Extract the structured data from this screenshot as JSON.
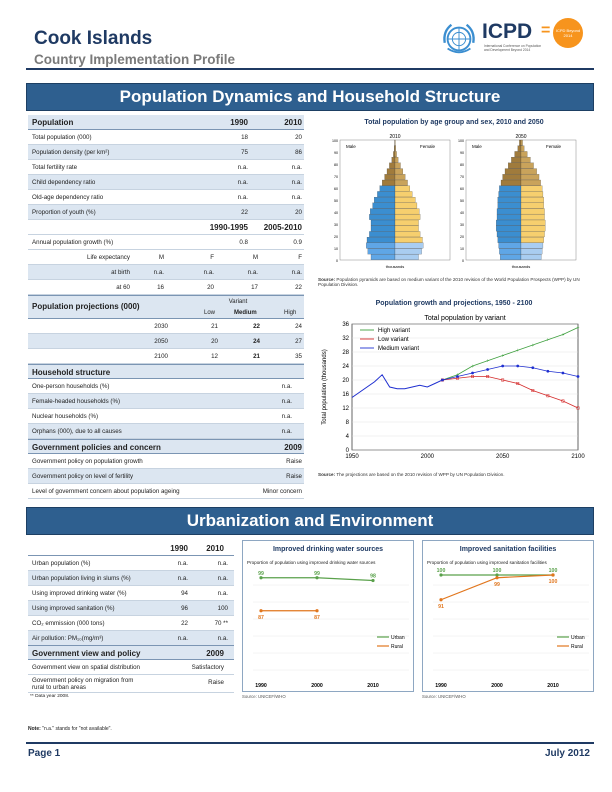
{
  "header": {
    "country": "Cook Islands",
    "subtitle": "Country Implementation Profile",
    "logo_text": "ICPD",
    "logo_eq": "=",
    "logo_caption": "International Conference on Population and Development Beyond 2014",
    "logo_circle_text": "ICPD Beyond 2014",
    "colors": {
      "navy": "#1f3a63",
      "band": "#2e5f8f",
      "orange": "#f7941d",
      "un_blue": "#3b8ed0"
    }
  },
  "section1": {
    "band_title": "Population Dynamics and Household Structure",
    "population_table": {
      "header": {
        "label": "Population",
        "c1": "1990",
        "c2": "2010"
      },
      "rows": [
        {
          "label": "Total population (000)",
          "v1": "18",
          "v2": "20"
        },
        {
          "label": "Population density (per km²)",
          "v1": "75",
          "v2": "86"
        },
        {
          "label": "Total fertility rate",
          "v1": "n.a.",
          "v2": "n.a."
        },
        {
          "label": "Child dependency ratio",
          "v1": "n.a.",
          "v2": "n.a."
        },
        {
          "label": "Old-age dependency ratio",
          "v1": "n.a.",
          "v2": "n.a."
        },
        {
          "label": "Proportion of youth (%)",
          "v1": "22",
          "v2": "20"
        }
      ],
      "period_header": {
        "c1": "1990-1995",
        "c2": "2005-2010"
      },
      "growth_row": {
        "label": "Annual population growth (%)",
        "v1": "0.8",
        "v2": "0.9"
      },
      "life_exp": {
        "label": "Life expectancy",
        "sex": [
          "M",
          "F",
          "M",
          "F"
        ],
        "at_birth_label": "at birth",
        "at_birth": [
          "n.a.",
          "n.a.",
          "n.a.",
          "n.a."
        ],
        "at60_label": "at 60",
        "at60": [
          "16",
          "20",
          "17",
          "22"
        ]
      }
    },
    "projections_table": {
      "header": "Population projections (000)",
      "variant_label": "Variant",
      "cols": [
        "Low",
        "Medium",
        "High"
      ],
      "rows": [
        {
          "year": "2030",
          "values": [
            "21",
            "22",
            "24"
          ]
        },
        {
          "year": "2050",
          "values": [
            "20",
            "24",
            "27"
          ]
        },
        {
          "year": "2100",
          "values": [
            "12",
            "21",
            "35"
          ]
        }
      ]
    },
    "household_table": {
      "header": "Household structure",
      "rows": [
        {
          "label": "One-person households (%)",
          "value": "n.a."
        },
        {
          "label": "Female-headed households (%)",
          "value": "n.a."
        },
        {
          "label": "Nuclear households (%)",
          "value": "n.a."
        },
        {
          "label": "Orphans (000), due to all causes",
          "value": "n.a."
        }
      ]
    },
    "policy_table": {
      "header": "Government policies and concern",
      "year": "2009",
      "rows": [
        {
          "label": "Government policy on population growth",
          "value": "Raise"
        },
        {
          "label": "Government policy on level of fertility",
          "value": "Raise"
        },
        {
          "label": "Level of government concern about population ageing",
          "value": "Minor concern"
        }
      ]
    },
    "pyramid": {
      "title": "Total population by age group and sex, 2010 and 2050",
      "years": [
        "2010",
        "2050"
      ],
      "male_label": "Male",
      "female_label": "Female",
      "x_unit_label": "thousands",
      "y_ticks": [
        "100",
        "90",
        "80",
        "70",
        "60",
        "50",
        "40",
        "30",
        "20",
        "10",
        "0"
      ],
      "source_label": "Source:",
      "source_text": "Population pyramids are based on medium variant of the 2010 revision of the World Population Prospects (WPP) by UN Population Division."
    },
    "growth_chart_title": "Population growth and projections, 1950 - 2100",
    "growth_chart_source_label": "Source:",
    "growth_chart_source": "The projections are based on the 2010 revision of WPP by UN Population Division."
  },
  "chart_data": [
    {
      "type": "line",
      "title": "Total population by variant",
      "xlabel": "",
      "ylabel": "Total population (thousands)",
      "xlim": [
        1950,
        2100
      ],
      "ylim": [
        0,
        36
      ],
      "x_ticks": [
        1950,
        2000,
        2050,
        2100
      ],
      "y_ticks": [
        0,
        4,
        8,
        12,
        16,
        20,
        24,
        28,
        32,
        36
      ],
      "legend": "top-left",
      "history": {
        "x": [
          1950,
          1955,
          1960,
          1965,
          1970,
          1975,
          1980,
          1985,
          1990,
          1995,
          2000,
          2005,
          2010
        ],
        "values": [
          15,
          16.5,
          18,
          19.5,
          21.5,
          18,
          17.5,
          17.5,
          18,
          18.5,
          18,
          19,
          20
        ]
      },
      "series": [
        {
          "name": "High variant",
          "color": "#3fa03f",
          "x": [
            2010,
            2020,
            2030,
            2040,
            2050,
            2060,
            2070,
            2080,
            2090,
            2100
          ],
          "values": [
            20,
            21.5,
            24,
            25.5,
            27,
            28.5,
            30,
            31.5,
            33,
            35
          ]
        },
        {
          "name": "Low variant",
          "color": "#d42a2a",
          "x": [
            2010,
            2020,
            2030,
            2040,
            2050,
            2060,
            2070,
            2080,
            2090,
            2100
          ],
          "values": [
            20,
            20.5,
            21,
            21,
            20,
            19,
            17,
            15.5,
            14,
            12
          ]
        },
        {
          "name": "Medium variant",
          "color": "#1f2fd0",
          "x": [
            2010,
            2020,
            2030,
            2040,
            2050,
            2060,
            2070,
            2080,
            2090,
            2100
          ],
          "values": [
            20,
            21,
            22,
            23,
            24,
            24,
            23.5,
            22.5,
            22,
            21
          ]
        }
      ]
    },
    {
      "type": "line",
      "title": "Improved drinking water sources",
      "subtitle": "Proportion of population using improved drinking water sources",
      "x": [
        1990,
        2000,
        2010
      ],
      "series": [
        {
          "name": "Urban",
          "color": "#5aa14b",
          "values": [
            99,
            99,
            98
          ]
        },
        {
          "name": "Rural",
          "color": "#e1761d",
          "values": [
            87,
            87,
            null
          ]
        }
      ],
      "source": "Source: UNICEF/WHO"
    },
    {
      "type": "line",
      "title": "Improved sanitation facilities",
      "subtitle": "Proportion of population using improved sanitation facilities",
      "x": [
        1990,
        2000,
        2010
      ],
      "series": [
        {
          "name": "Urban",
          "color": "#5aa14b",
          "values": [
            100,
            100,
            100
          ]
        },
        {
          "name": "Rural",
          "color": "#e1761d",
          "values": [
            91,
            99,
            100
          ]
        }
      ],
      "source": "Source: UNICEF/WHO"
    }
  ],
  "section2": {
    "band_title": "Urbanization and Environment",
    "urban_table": {
      "header": {
        "c1": "1990",
        "c2": "2010"
      },
      "rows": [
        {
          "label": "Urban population (%)",
          "v1": "n.a.",
          "v2": "n.a."
        },
        {
          "label": "Urban population living in slums (%)",
          "v1": "n.a.",
          "v2": "n.a."
        },
        {
          "label": "Using improved drinking water (%)",
          "v1": "94",
          "v2": "n.a."
        },
        {
          "label": "Using improved sanitation (%)",
          "v1": "96",
          "v2": "100"
        },
        {
          "label": "CO₂ emmission (000 tons)",
          "v1": "22",
          "v2": "70 **"
        },
        {
          "label": "Air pollution: PM₁₀(mg/m³)",
          "v1": "n.a.",
          "v2": "n.a."
        }
      ],
      "policy_header": "Government view and policy",
      "policy_year": "2009",
      "policy_rows": [
        {
          "label": "Government view on spatial distribution",
          "value": "Satisfactory"
        },
        {
          "label": "Government policy on migration from rural to urban areas",
          "value": "Raise"
        }
      ],
      "footnote": "** Data year 2008."
    },
    "water": {
      "title": "Improved drinking water sources",
      "subtitle": "Proportion of population using improved drinking water sources",
      "urban_labels": [
        "99",
        "99",
        "98"
      ],
      "rural_labels": [
        "87",
        "87"
      ],
      "x_labels": [
        "1990",
        "2000",
        "2010"
      ],
      "legend": [
        "Urban",
        "Rural"
      ],
      "source": "Source: UNICEF/WHO"
    },
    "sanitation": {
      "title": "Improved sanitation facilities",
      "subtitle": "Proportion of population using improved sanitation facilities",
      "urban_labels": [
        "100",
        "100",
        "100"
      ],
      "rural_labels": [
        "91",
        "99",
        "100"
      ],
      "x_labels": [
        "1990",
        "2000",
        "2010"
      ],
      "legend": [
        "Urban",
        "Rural"
      ],
      "source": "Source: UNICEF/WHO"
    },
    "note_label": "Note:",
    "note": "\"n.a.\" stands for \"not available\"."
  },
  "footer": {
    "page": "Page 1",
    "date": "July 2012"
  }
}
